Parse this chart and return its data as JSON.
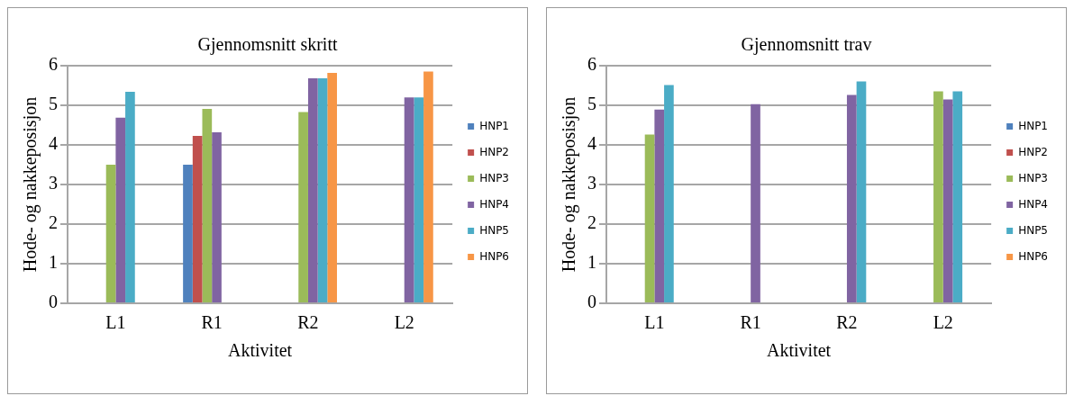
{
  "chart_data": [
    {
      "type": "bar",
      "title": "Gjennomsnitt skritt",
      "xlabel": "Aktivitet",
      "ylabel": "Hode- og nakkeposisjon",
      "categories": [
        "L1",
        "R1",
        "R2",
        "L2"
      ],
      "series": [
        {
          "name": "HNP1",
          "color": "#4f81bd",
          "values": [
            null,
            3.5,
            null,
            null
          ]
        },
        {
          "name": "HNP2",
          "color": "#c0504d",
          "values": [
            null,
            4.23,
            null,
            null
          ]
        },
        {
          "name": "HNP3",
          "color": "#9bbb59",
          "values": [
            3.5,
            4.91,
            4.83,
            null
          ]
        },
        {
          "name": "HNP4",
          "color": "#8064a2",
          "values": [
            4.69,
            4.32,
            5.68,
            5.2
          ]
        },
        {
          "name": "HNP5",
          "color": "#4bacc6",
          "values": [
            5.34,
            null,
            5.68,
            5.2
          ]
        },
        {
          "name": "HNP6",
          "color": "#f79646",
          "values": [
            null,
            null,
            5.82,
            5.85
          ]
        }
      ],
      "ylim": [
        0,
        6
      ],
      "yticks": [
        0,
        1,
        2,
        3,
        4,
        5,
        6
      ],
      "grid": "y",
      "legend": "right"
    },
    {
      "type": "bar",
      "title": "Gjennomsnitt trav",
      "xlabel": "Aktivitet",
      "ylabel": "Hode- og nakkeposisjon",
      "categories": [
        "L1",
        "R1",
        "R2",
        "L2"
      ],
      "series": [
        {
          "name": "HNP1",
          "color": "#4f81bd",
          "values": [
            null,
            null,
            null,
            null
          ]
        },
        {
          "name": "HNP2",
          "color": "#c0504d",
          "values": [
            null,
            null,
            null,
            null
          ]
        },
        {
          "name": "HNP3",
          "color": "#9bbb59",
          "values": [
            4.26,
            null,
            null,
            5.35
          ]
        },
        {
          "name": "HNP4",
          "color": "#8064a2",
          "values": [
            4.89,
            5.03,
            5.26,
            5.15
          ]
        },
        {
          "name": "HNP5",
          "color": "#4bacc6",
          "values": [
            5.51,
            null,
            5.6,
            5.35
          ]
        },
        {
          "name": "HNP6",
          "color": "#f79646",
          "values": [
            null,
            null,
            null,
            null
          ]
        }
      ],
      "ylim": [
        0,
        6
      ],
      "yticks": [
        0,
        1,
        2,
        3,
        4,
        5,
        6
      ],
      "grid": "y",
      "legend": "right"
    }
  ]
}
